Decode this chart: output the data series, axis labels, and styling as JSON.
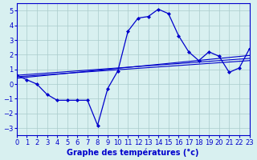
{
  "title": "Graphe des températures (°c)",
  "bg_color": "#d8f0f0",
  "plot_bg_color": "#d8f0f0",
  "line_color": "#0000cc",
  "grid_color": "#aacccc",
  "xlim": [
    0,
    23
  ],
  "ylim": [
    -3.5,
    5.5
  ],
  "yticks": [
    -3,
    -2,
    -1,
    0,
    1,
    2,
    3,
    4,
    5
  ],
  "xticks": [
    0,
    1,
    2,
    3,
    4,
    5,
    6,
    7,
    8,
    9,
    10,
    11,
    12,
    13,
    14,
    15,
    16,
    17,
    18,
    19,
    20,
    21,
    22,
    23
  ],
  "main_line_x": [
    0,
    1,
    2,
    3,
    4,
    5,
    6,
    7,
    8,
    9,
    10,
    11,
    12,
    13,
    14,
    15,
    16,
    17,
    18,
    19,
    20,
    21,
    22,
    23
  ],
  "main_line_y": [
    0.6,
    0.3,
    0.0,
    -0.7,
    -1.1,
    -1.1,
    -1.1,
    -1.1,
    -2.8,
    -0.3,
    0.9,
    3.6,
    4.5,
    4.6,
    5.1,
    4.8,
    3.3,
    2.2,
    1.6,
    2.2,
    1.9,
    0.8,
    1.1,
    2.4
  ],
  "reg_line1_x": [
    0,
    23
  ],
  "reg_line1_y": [
    0.6,
    1.75
  ],
  "reg_line2_x": [
    0,
    23
  ],
  "reg_line2_y": [
    0.4,
    1.95
  ],
  "reg_line3_x": [
    0,
    23
  ],
  "reg_line3_y": [
    0.5,
    1.6
  ],
  "xlabel_fontsize": 7,
  "tick_fontsize": 6
}
